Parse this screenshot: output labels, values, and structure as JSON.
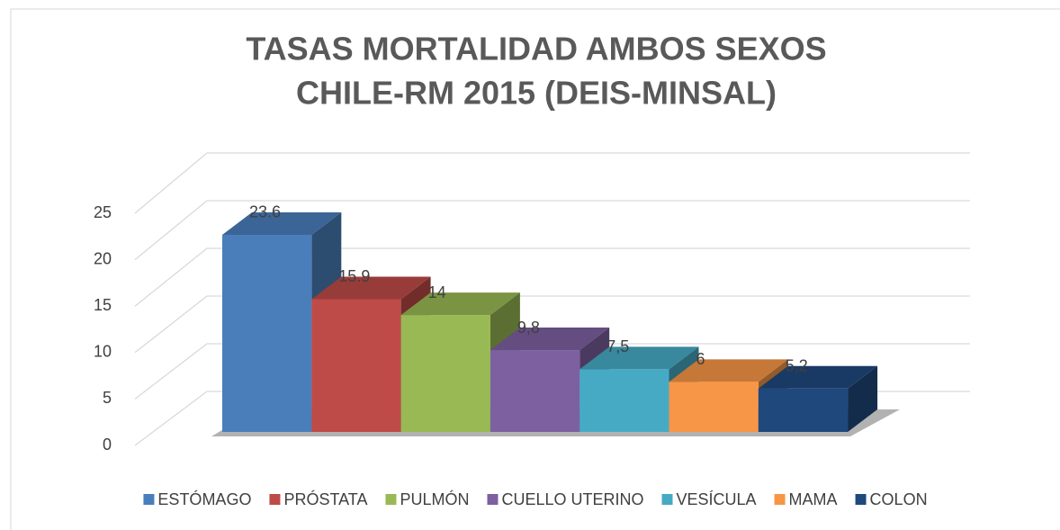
{
  "chart_data": {
    "type": "bar3d",
    "title": [
      "TASAS MORTALIDAD AMBOS SEXOS",
      "CHILE-RM 2015 (DEIS-MINSAL)"
    ],
    "ylim": [
      0,
      25
    ],
    "yticks": [
      0,
      5,
      10,
      15,
      20,
      25
    ],
    "grid": true,
    "legend": "bottom",
    "series": [
      {
        "name": "ESTÓMAGO",
        "color": "#4a7ebb",
        "values": [
          23.6
        ]
      },
      {
        "name": "PRÓSTATA",
        "color": "#be4b48",
        "values": [
          15.9
        ]
      },
      {
        "name": "PULMÓN",
        "color": "#98b954",
        "values": [
          14
        ]
      },
      {
        "name": "CUELLO UTERINO",
        "color": "#7d60a0",
        "values": [
          9.8
        ],
        "value_labels": [
          "9,8"
        ]
      },
      {
        "name": "VESÍCULA",
        "color": "#46aac5",
        "values": [
          7.5
        ],
        "value_labels": [
          "7,5"
        ]
      },
      {
        "name": "MAMA",
        "color": "#f79646",
        "values": [
          6
        ]
      },
      {
        "name": "COLON",
        "color": "#1f497d",
        "values": [
          5.2
        ],
        "value_labels": [
          "5,2"
        ]
      }
    ]
  }
}
